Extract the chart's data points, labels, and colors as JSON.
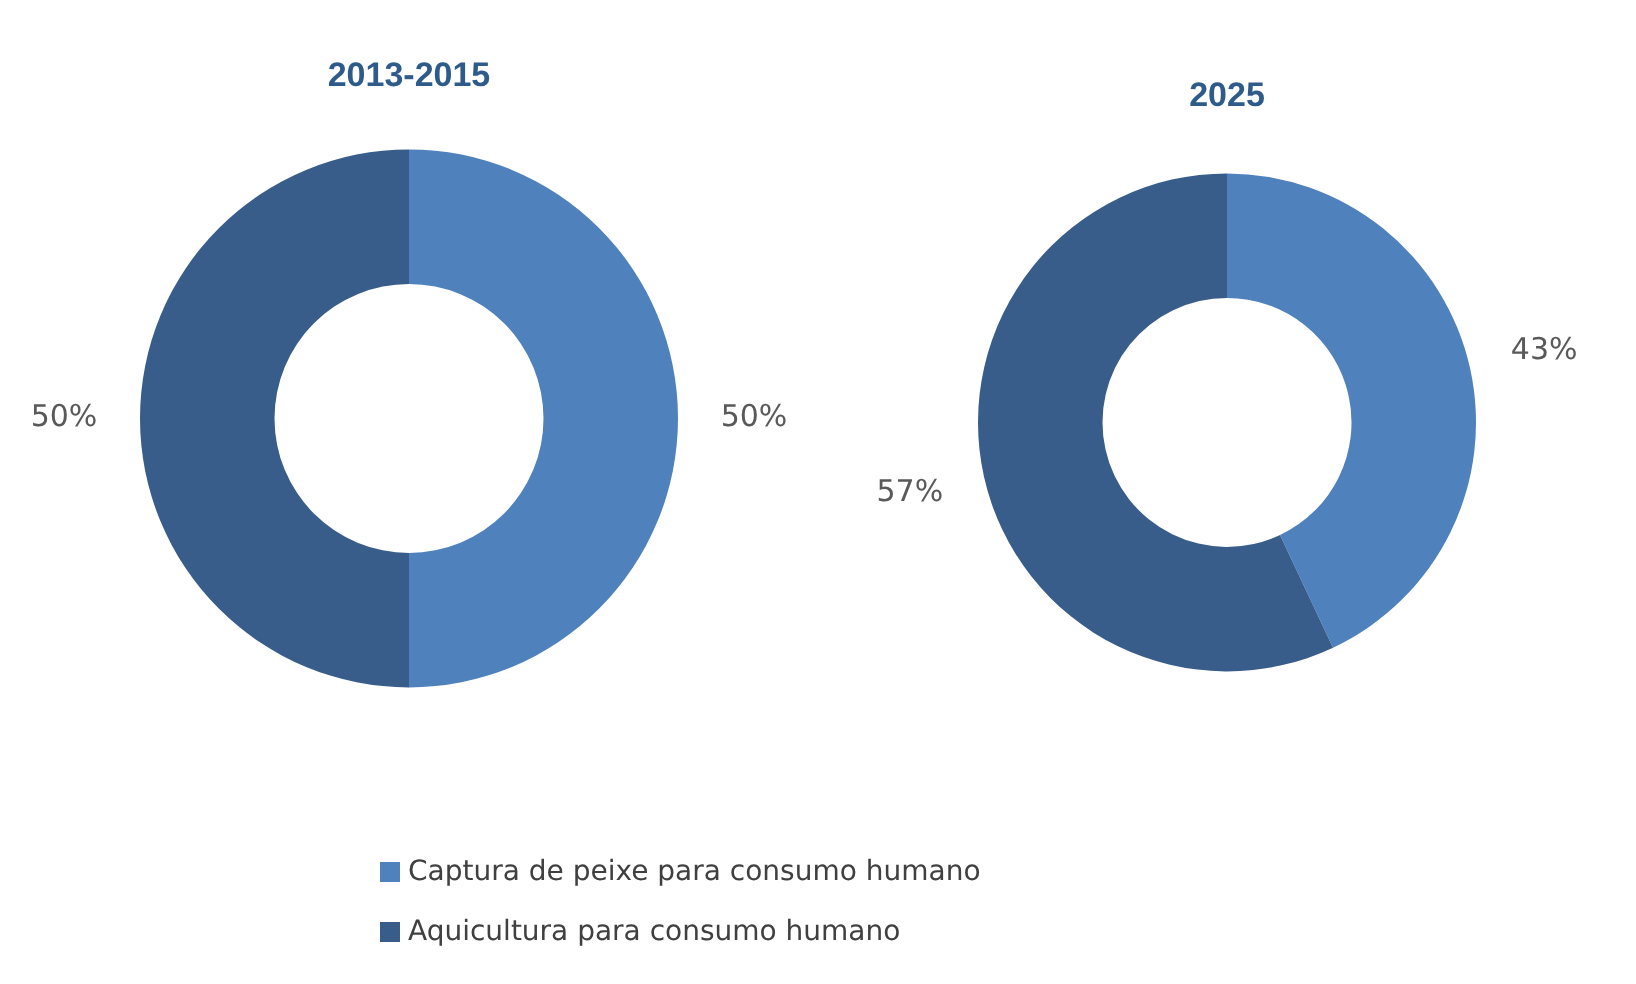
{
  "chart_data": [
    {
      "type": "donut",
      "title": "2013-2015",
      "categories": [
        "Captura de peixe para consumo humano",
        "Aquicultura para consumo humano"
      ],
      "values": [
        50,
        50
      ],
      "value_labels": [
        "50%",
        "50%"
      ],
      "colors": [
        "#4f81bd",
        "#385d8a"
      ],
      "legend": "bottom"
    },
    {
      "type": "donut",
      "title": "2025",
      "categories": [
        null,
        null
      ],
      "values": [
        43,
        57
      ],
      "value_labels": [
        "43%",
        "57%"
      ],
      "colors": [
        "#4f81bd",
        "#385d8a"
      ]
    }
  ]
}
